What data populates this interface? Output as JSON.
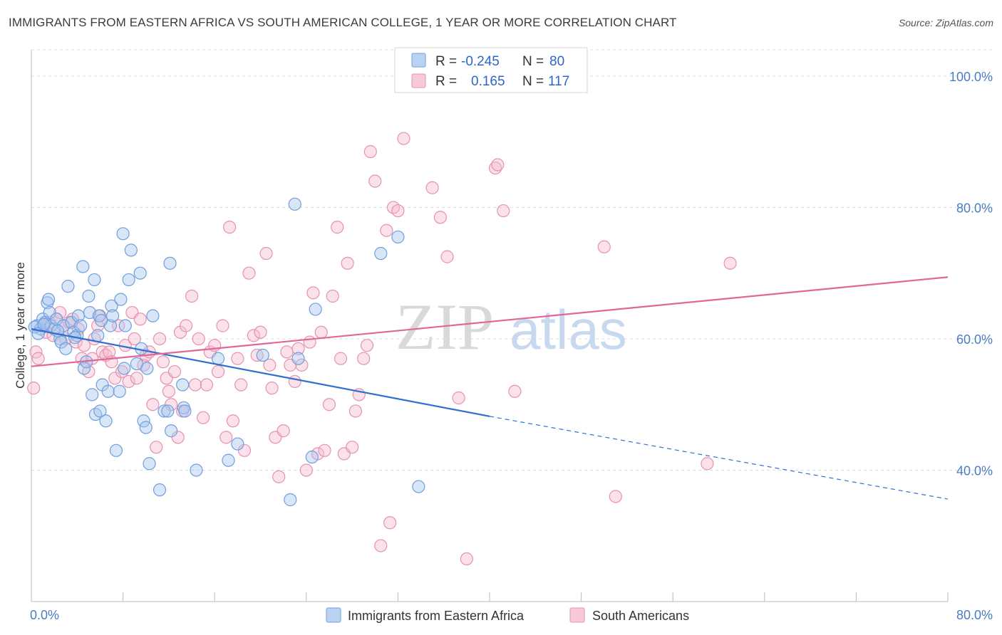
{
  "title": "IMMIGRANTS FROM EASTERN AFRICA VS SOUTH AMERICAN COLLEGE, 1 YEAR OR MORE CORRELATION CHART",
  "source": "Source: ZipAtlas.com",
  "watermark": {
    "zip": "ZIP",
    "atlas": "atlas"
  },
  "colors": {
    "blue_fill": "#a9c8f0",
    "blue_stroke": "#6f9fdc",
    "blue_line": "#2f6fcf",
    "pink_fill": "#f6bcd0",
    "pink_stroke": "#e592b0",
    "pink_line": "#e0679a",
    "grid": "#dddddd",
    "tick_text": "#4a7cc4"
  },
  "legend": {
    "rows": [
      {
        "r_label": "R =",
        "r_value": "-0.245",
        "n_label": "N =",
        "n_value": "80"
      },
      {
        "r_label": "R =",
        "r_value": "0.165",
        "n_label": "N =",
        "n_value": "117"
      }
    ]
  },
  "chart_data": {
    "type": "scatter",
    "title": "IMMIGRANTS FROM EASTERN AFRICA VS SOUTH AMERICAN COLLEGE, 1 YEAR OR MORE CORRELATION CHART",
    "xlabel": "",
    "ylabel": "College, 1 year or more",
    "xlim": [
      0,
      80
    ],
    "ylim": [
      20,
      104
    ],
    "x_tick_labels": [
      "0.0%",
      "80.0%"
    ],
    "y_tick_labels": [
      {
        "value": 100,
        "label": "100.0%"
      },
      {
        "value": 80,
        "label": "80.0%"
      },
      {
        "value": 60,
        "label": "60.0%"
      },
      {
        "value": 40,
        "label": "40.0%"
      }
    ],
    "grid": true,
    "legend_position": "top-center",
    "series": [
      {
        "name": "Immigrants from Eastern Africa",
        "color": "#a9c8f0",
        "trend": {
          "x": [
            0,
            40
          ],
          "y": [
            61.5,
            48.2
          ],
          "dashed_to": [
            80,
            35.6
          ]
        },
        "points": [
          [
            0.5,
            62
          ],
          [
            0.8,
            61.5
          ],
          [
            1.0,
            63
          ],
          [
            1.2,
            62.5
          ],
          [
            1.4,
            65.5
          ],
          [
            1.6,
            64
          ],
          [
            1.5,
            66
          ],
          [
            1.7,
            62
          ],
          [
            2.0,
            61.5
          ],
          [
            2.2,
            63
          ],
          [
            2.5,
            60
          ],
          [
            2.6,
            59.5
          ],
          [
            2.8,
            62
          ],
          [
            3.0,
            58.5
          ],
          [
            3.2,
            68
          ],
          [
            3.5,
            62.5
          ],
          [
            3.7,
            61
          ],
          [
            4.0,
            60.5
          ],
          [
            4.1,
            63.5
          ],
          [
            4.3,
            62
          ],
          [
            4.5,
            71
          ],
          [
            4.6,
            55.5
          ],
          [
            4.8,
            56.5
          ],
          [
            5.0,
            66.5
          ],
          [
            5.1,
            64
          ],
          [
            5.3,
            51.5
          ],
          [
            5.5,
            69
          ],
          [
            5.6,
            48.5
          ],
          [
            5.8,
            60.5
          ],
          [
            5.9,
            63.5
          ],
          [
            6.0,
            49
          ],
          [
            6.2,
            53
          ],
          [
            6.5,
            47.5
          ],
          [
            6.7,
            52
          ],
          [
            6.9,
            62
          ],
          [
            7.0,
            65
          ],
          [
            7.1,
            63.5
          ],
          [
            7.4,
            43
          ],
          [
            7.7,
            52
          ],
          [
            7.8,
            66
          ],
          [
            8.0,
            76
          ],
          [
            8.1,
            55.5
          ],
          [
            8.2,
            62
          ],
          [
            8.5,
            69
          ],
          [
            8.7,
            73.5
          ],
          [
            9.5,
            70
          ],
          [
            9.6,
            58.5
          ],
          [
            9.8,
            47.5
          ],
          [
            10.0,
            46.5
          ],
          [
            10.1,
            55.5
          ],
          [
            10.3,
            41
          ],
          [
            10.6,
            63.5
          ],
          [
            11.2,
            37
          ],
          [
            11.6,
            49
          ],
          [
            11.9,
            49
          ],
          [
            12.1,
            71.5
          ],
          [
            12.2,
            46
          ],
          [
            13.2,
            53
          ],
          [
            13.3,
            49.5
          ],
          [
            13.4,
            49
          ],
          [
            14.4,
            40
          ],
          [
            16.3,
            57
          ],
          [
            17.2,
            41.5
          ],
          [
            18.0,
            44
          ],
          [
            20.2,
            57.5
          ],
          [
            22.6,
            35.5
          ],
          [
            23.0,
            80.5
          ],
          [
            23.3,
            57
          ],
          [
            24.5,
            42
          ],
          [
            24.8,
            64.5
          ],
          [
            30.5,
            73
          ],
          [
            32.0,
            75.5
          ],
          [
            33.8,
            37.5
          ],
          [
            0.3,
            61.8
          ],
          [
            0.6,
            60.8
          ],
          [
            1.1,
            62.2
          ],
          [
            2.3,
            61.2
          ],
          [
            3.8,
            60.2
          ],
          [
            6.1,
            62.8
          ],
          [
            9.2,
            56.2
          ]
        ]
      },
      {
        "name": "South Americans",
        "color": "#f6bcd0",
        "trend": {
          "x": [
            0,
            80
          ],
          "y": [
            55.8,
            69.4
          ]
        },
        "points": [
          [
            0.2,
            52.5
          ],
          [
            0.4,
            58
          ],
          [
            0.6,
            57
          ],
          [
            1.0,
            62
          ],
          [
            1.3,
            61
          ],
          [
            1.6,
            62.5
          ],
          [
            1.9,
            60.5
          ],
          [
            2.2,
            63
          ],
          [
            2.5,
            64
          ],
          [
            2.8,
            62
          ],
          [
            3.0,
            60
          ],
          [
            3.3,
            62.5
          ],
          [
            3.6,
            63
          ],
          [
            3.9,
            59.5
          ],
          [
            4.1,
            61.5
          ],
          [
            4.4,
            57
          ],
          [
            4.6,
            59
          ],
          [
            5.0,
            55
          ],
          [
            5.3,
            57
          ],
          [
            5.5,
            60
          ],
          [
            5.8,
            62
          ],
          [
            6.0,
            63.5
          ],
          [
            6.2,
            58
          ],
          [
            6.5,
            57.5
          ],
          [
            6.8,
            58
          ],
          [
            7.0,
            56.5
          ],
          [
            7.3,
            54
          ],
          [
            7.6,
            62
          ],
          [
            7.9,
            55
          ],
          [
            8.2,
            59
          ],
          [
            8.5,
            53.5
          ],
          [
            8.8,
            64
          ],
          [
            9.0,
            60
          ],
          [
            9.2,
            54
          ],
          [
            9.5,
            63
          ],
          [
            9.8,
            56
          ],
          [
            10.0,
            57.5
          ],
          [
            10.3,
            58
          ],
          [
            10.6,
            50
          ],
          [
            10.9,
            43.5
          ],
          [
            11.2,
            60
          ],
          [
            11.5,
            56.5
          ],
          [
            11.8,
            54
          ],
          [
            12.0,
            52
          ],
          [
            12.2,
            50
          ],
          [
            12.5,
            55
          ],
          [
            12.8,
            45
          ],
          [
            13.0,
            61
          ],
          [
            13.2,
            49
          ],
          [
            13.5,
            62
          ],
          [
            14.0,
            66.5
          ],
          [
            14.3,
            53
          ],
          [
            14.6,
            60
          ],
          [
            15.0,
            48
          ],
          [
            15.3,
            53
          ],
          [
            15.6,
            58
          ],
          [
            16.0,
            59
          ],
          [
            16.3,
            55
          ],
          [
            16.7,
            62
          ],
          [
            17.0,
            45
          ],
          [
            17.3,
            77
          ],
          [
            17.6,
            47.5
          ],
          [
            18.0,
            57
          ],
          [
            18.3,
            53
          ],
          [
            18.6,
            43
          ],
          [
            19.0,
            70
          ],
          [
            19.4,
            60.5
          ],
          [
            19.7,
            57.5
          ],
          [
            20.0,
            61
          ],
          [
            20.5,
            73
          ],
          [
            20.8,
            56
          ],
          [
            21.0,
            52.5
          ],
          [
            21.3,
            45
          ],
          [
            21.6,
            39
          ],
          [
            22.0,
            46
          ],
          [
            22.3,
            58
          ],
          [
            22.6,
            56
          ],
          [
            23.0,
            53.5
          ],
          [
            23.3,
            58.5
          ],
          [
            23.6,
            56
          ],
          [
            24.0,
            40
          ],
          [
            24.3,
            59.5
          ],
          [
            24.6,
            67
          ],
          [
            25.0,
            42.5
          ],
          [
            25.3,
            61
          ],
          [
            25.6,
            43
          ],
          [
            26.0,
            50
          ],
          [
            26.3,
            66.5
          ],
          [
            26.7,
            77
          ],
          [
            27.0,
            57
          ],
          [
            27.3,
            42.5
          ],
          [
            27.6,
            71.5
          ],
          [
            28.0,
            43.5
          ],
          [
            28.3,
            49
          ],
          [
            28.6,
            51.5
          ],
          [
            29.0,
            57
          ],
          [
            29.3,
            59
          ],
          [
            29.6,
            88.5
          ],
          [
            30.0,
            84
          ],
          [
            30.5,
            28.5
          ],
          [
            31.0,
            76.5
          ],
          [
            31.3,
            32
          ],
          [
            31.6,
            80
          ],
          [
            32.0,
            79.5
          ],
          [
            32.5,
            90.5
          ],
          [
            35.0,
            83
          ],
          [
            35.7,
            78.5
          ],
          [
            36.3,
            72.5
          ],
          [
            37.0,
            100
          ],
          [
            37.3,
            51
          ],
          [
            38.0,
            26.5
          ],
          [
            40.5,
            86
          ],
          [
            40.7,
            86.5
          ],
          [
            41.2,
            79.5
          ],
          [
            42.2,
            52
          ],
          [
            50.0,
            74
          ],
          [
            51.0,
            36
          ],
          [
            59.0,
            41
          ],
          [
            61.0,
            71.5
          ]
        ]
      }
    ]
  },
  "bottom_legend": [
    {
      "label": "Immigrants from Eastern Africa"
    },
    {
      "label": "South Americans"
    }
  ]
}
